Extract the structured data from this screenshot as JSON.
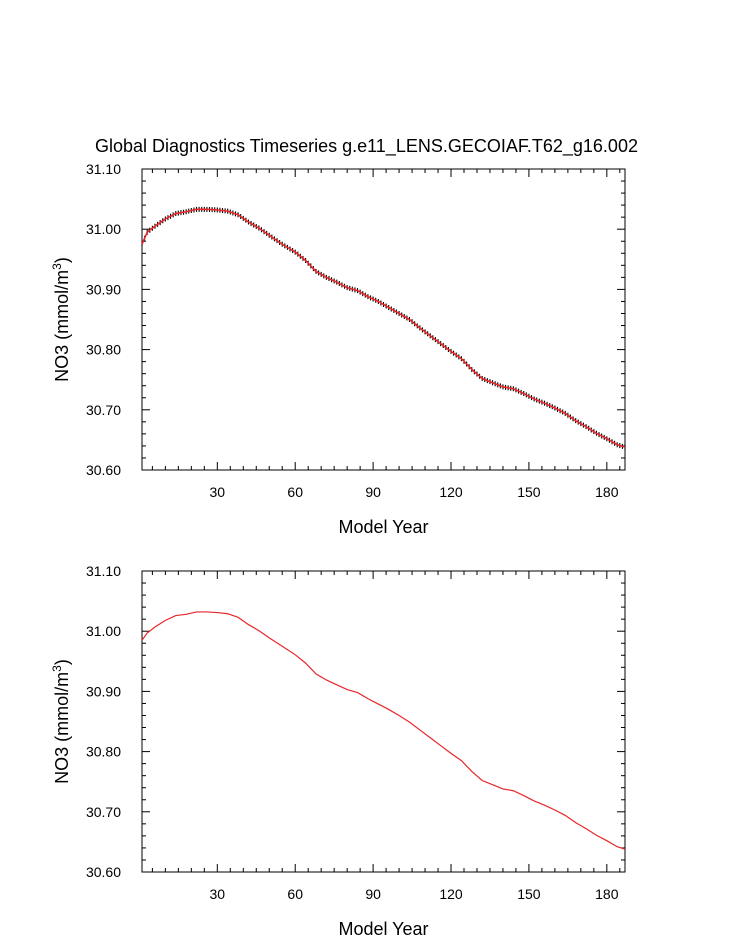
{
  "title": "Global Diagnostics Timeseries g.e11_LENS.GECOIAF.T62_g16.002",
  "chart_data": [
    {
      "type": "line",
      "panel": "top",
      "variant": "annual-cycle",
      "title": "Global Diagnostics Timeseries g.e11_LENS.GECOIAF.T62_g16.002",
      "xlabel": "Model Year",
      "ylabel": "NO3 (mmol/m",
      "ylabel_sup": "3",
      "ylabel_close": ")",
      "xlim": [
        1,
        187
      ],
      "ylim": [
        30.6,
        31.1
      ],
      "xticks": [
        30,
        60,
        90,
        120,
        150,
        180
      ],
      "xtick_labels": [
        "30",
        "60",
        "90",
        "120",
        "150",
        "180"
      ],
      "yticks": [
        30.6,
        30.7,
        30.8,
        30.9,
        31.0,
        31.1
      ],
      "ytick_labels": [
        "30.60",
        "30.70",
        "30.80",
        "30.90",
        "31.00",
        "31.10"
      ],
      "series": [
        {
          "name": "NO3",
          "color": "#e8262a",
          "markerColor": "#000000",
          "x": [
            1,
            3,
            6,
            10,
            14,
            18,
            22,
            26,
            30,
            34,
            38,
            42,
            46,
            50,
            55,
            60,
            64,
            68,
            72,
            76,
            80,
            84,
            88,
            92,
            96,
            100,
            104,
            108,
            112,
            116,
            120,
            124,
            128,
            132,
            136,
            140,
            144,
            148,
            152,
            156,
            160,
            164,
            168,
            172,
            176,
            180,
            184,
            187
          ],
          "y": [
            30.975,
            30.995,
            31.005,
            31.017,
            31.026,
            31.029,
            31.033,
            31.033,
            31.032,
            31.03,
            31.024,
            31.012,
            31.002,
            30.99,
            30.975,
            30.962,
            30.948,
            30.93,
            30.92,
            30.912,
            30.903,
            30.898,
            30.888,
            30.88,
            30.87,
            30.86,
            30.85,
            30.836,
            30.823,
            30.81,
            30.797,
            30.785,
            30.767,
            30.752,
            30.745,
            30.738,
            30.735,
            30.727,
            30.718,
            30.711,
            30.703,
            30.694,
            30.682,
            30.672,
            30.661,
            30.652,
            30.642,
            30.638
          ]
        }
      ]
    },
    {
      "type": "line",
      "panel": "bottom",
      "variant": "annual-mean",
      "xlabel": "Model Year",
      "ylabel": "NO3 (mmol/m",
      "ylabel_sup": "3",
      "ylabel_close": ")",
      "xlim": [
        1,
        187
      ],
      "ylim": [
        30.6,
        31.1
      ],
      "xticks": [
        30,
        60,
        90,
        120,
        150,
        180
      ],
      "xtick_labels": [
        "30",
        "60",
        "90",
        "120",
        "150",
        "180"
      ],
      "yticks": [
        30.6,
        30.7,
        30.8,
        30.9,
        31.0,
        31.1
      ],
      "ytick_labels": [
        "30.60",
        "30.70",
        "30.80",
        "30.90",
        "31.00",
        "31.10"
      ],
      "series": [
        {
          "name": "NO3",
          "color": "#e8262a",
          "x": [
            1,
            3,
            6,
            10,
            14,
            18,
            22,
            26,
            30,
            34,
            38,
            42,
            46,
            50,
            55,
            60,
            64,
            68,
            72,
            76,
            80,
            84,
            88,
            92,
            96,
            100,
            104,
            108,
            112,
            116,
            120,
            124,
            128,
            132,
            136,
            140,
            144,
            148,
            152,
            156,
            160,
            164,
            168,
            172,
            176,
            180,
            184,
            187
          ],
          "y": [
            30.985,
            30.997,
            31.007,
            31.018,
            31.026,
            31.028,
            31.032,
            31.032,
            31.031,
            31.029,
            31.023,
            31.011,
            31.001,
            30.989,
            30.975,
            30.961,
            30.947,
            30.929,
            30.919,
            30.911,
            30.903,
            30.898,
            30.888,
            30.879,
            30.87,
            30.86,
            30.849,
            30.836,
            30.823,
            30.81,
            30.797,
            30.785,
            30.767,
            30.752,
            30.745,
            30.738,
            30.735,
            30.727,
            30.718,
            30.711,
            30.703,
            30.694,
            30.682,
            30.672,
            30.661,
            30.652,
            30.642,
            30.638
          ]
        }
      ]
    }
  ]
}
